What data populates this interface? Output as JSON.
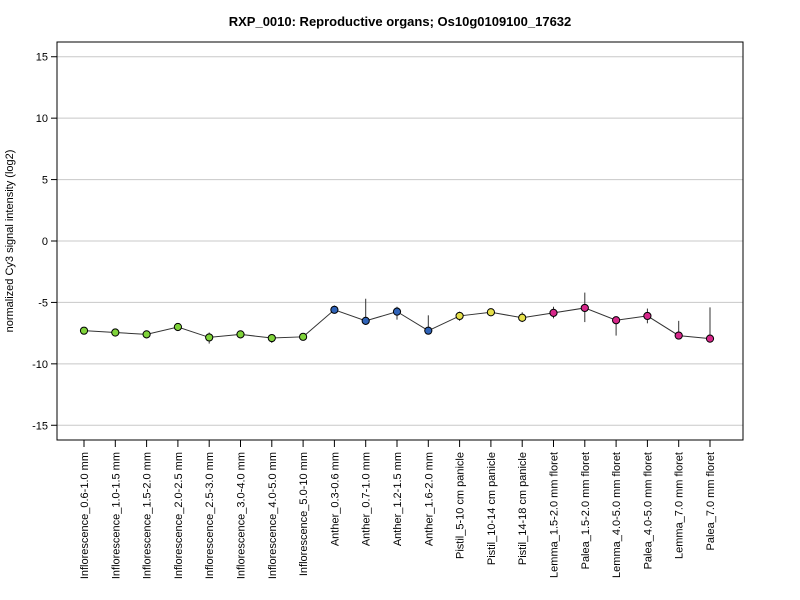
{
  "chart_data": {
    "type": "line",
    "title": "RXP_0010: Reproductive organs; Os10g0109100_17632",
    "xlabel": "",
    "ylabel": "normalized Cy3 signal intensity (log2)",
    "ylim": [
      -16.2,
      16.2
    ],
    "yticks": [
      15,
      10,
      5,
      0,
      -5,
      -10,
      -15
    ],
    "ytick_labels": [
      "15",
      "10",
      "5",
      "0",
      "-5",
      "-10",
      "-15"
    ],
    "grid": true,
    "categories": [
      "Inflorescence_0.6-1.0 mm",
      "Inflorescence_1.0-1.5 mm",
      "Inflorescence_1.5-2.0 mm",
      "Inflorescence_2.0-2.5 mm",
      "Inflorescence_2.5-3.0 mm",
      "Inflorescence_3.0-4.0 mm",
      "Inflorescence_4.0-5.0 mm",
      "Inflorescence_5.0-10 mm",
      "Anther_0.3-0.6 mm",
      "Anther_0.7-1.0 mm",
      "Anther_1.2-1.5 mm",
      "Anther_1.6-2.0 mm",
      "Pistil_5-10 cm panicle",
      "Pistil_10-14 cm panicle",
      "Pistil_14-18 cm panicle",
      "Lemma_1.5-2.0 mm floret",
      "Palea_1.5-2.0 mm floret",
      "Lemma_4.0-5.0 mm floret",
      "Palea_4.0-5.0 mm floret",
      "Lemma_7.0 mm floret",
      "Palea_7.0 mm floret"
    ],
    "values": [
      -7.3,
      -7.45,
      -7.6,
      -7.0,
      -7.85,
      -7.6,
      -7.9,
      -7.8,
      -5.6,
      -6.5,
      -5.75,
      -7.3,
      -6.1,
      -5.8,
      -6.25,
      -5.85,
      -5.45,
      -6.45,
      -6.1,
      -7.7,
      -7.95
    ],
    "error_low": [
      -7.6,
      -7.6,
      -7.75,
      -7.15,
      -8.35,
      -7.75,
      -8.3,
      -7.95,
      -5.9,
      -6.8,
      -6.4,
      -7.5,
      -6.5,
      -6.0,
      -6.6,
      -6.3,
      -6.6,
      -7.7,
      -6.7,
      -8.0,
      -8.1
    ],
    "error_high": [
      -7.05,
      -7.3,
      -7.45,
      -6.85,
      -7.45,
      -7.45,
      -7.6,
      -7.65,
      -5.25,
      -4.7,
      -5.35,
      -6.05,
      -5.75,
      -5.6,
      -5.8,
      -5.35,
      -4.2,
      -6.15,
      -5.5,
      -6.5,
      -5.4
    ],
    "colors": [
      "#7fd33a",
      "#7fd33a",
      "#7fd33a",
      "#7fd33a",
      "#7fd33a",
      "#7fd33a",
      "#7fd33a",
      "#7fd33a",
      "#2f63b8",
      "#2f63b8",
      "#2f63b8",
      "#2f63b8",
      "#e6e04a",
      "#e6e04a",
      "#e6e04a",
      "#d6278a",
      "#d6278a",
      "#d6278a",
      "#d6278a",
      "#d6278a",
      "#d6278a"
    ]
  }
}
